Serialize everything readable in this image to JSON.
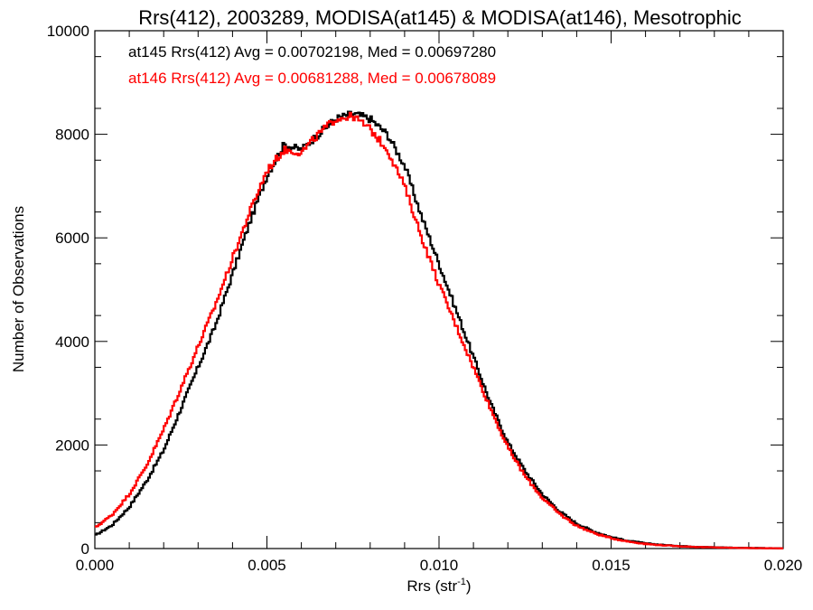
{
  "chart_data": {
    "type": "histogram-step",
    "title": "Rrs(412), 2003289, MODISA(at145) & MODISA(at146), Mesotrophic",
    "xlabel": "Rrs (str",
    "xlabel_sup": "-1",
    "xlabel_close": ")",
    "ylabel": "Number of Observations",
    "xlim": [
      0.0,
      0.02
    ],
    "ylim": [
      0,
      10000
    ],
    "x_ticks": [
      0.0,
      0.005,
      0.01,
      0.015,
      0.02
    ],
    "x_tick_labels": [
      "0.000",
      "0.005",
      "0.010",
      "0.015",
      "0.020"
    ],
    "y_ticks": [
      0,
      2000,
      4000,
      6000,
      8000,
      10000
    ],
    "y_tick_labels": [
      "0",
      "2000",
      "4000",
      "6000",
      "8000",
      "10000"
    ],
    "grid": false,
    "legend_position": "top-left",
    "series": [
      {
        "name": "at145",
        "color": "#000000",
        "legend": "at145 Rrs(412) Avg = 0.00702198, Med = 0.00697280",
        "x": [
          0.0,
          0.0005,
          0.001,
          0.0015,
          0.002,
          0.0025,
          0.003,
          0.0035,
          0.004,
          0.0045,
          0.005,
          0.0055,
          0.006,
          0.0065,
          0.007,
          0.0075,
          0.008,
          0.0085,
          0.009,
          0.0095,
          0.01,
          0.0105,
          0.011,
          0.0115,
          0.012,
          0.0125,
          0.013,
          0.0135,
          0.014,
          0.0145,
          0.015,
          0.0155,
          0.016,
          0.0165,
          0.017,
          0.0175,
          0.018,
          0.0185,
          0.019,
          0.0195,
          0.02
        ],
        "y": [
          250,
          450,
          800,
          1300,
          1900,
          2700,
          3500,
          4300,
          5300,
          6300,
          7200,
          7800,
          7700,
          8000,
          8300,
          8400,
          8300,
          8000,
          7400,
          6400,
          5500,
          4600,
          3700,
          2800,
          2050,
          1500,
          1050,
          720,
          480,
          330,
          220,
          150,
          100,
          70,
          50,
          35,
          25,
          18,
          12,
          8,
          5
        ]
      },
      {
        "name": "at146",
        "color": "#ff0000",
        "legend": "at146 Rrs(412) Avg = 0.00681288, Med = 0.00678089",
        "x": [
          0.0,
          0.0005,
          0.001,
          0.0015,
          0.002,
          0.0025,
          0.003,
          0.0035,
          0.004,
          0.0045,
          0.005,
          0.0055,
          0.006,
          0.0065,
          0.007,
          0.0075,
          0.008,
          0.0085,
          0.009,
          0.0095,
          0.01,
          0.0105,
          0.011,
          0.0115,
          0.012,
          0.0125,
          0.013,
          0.0135,
          0.014,
          0.0145,
          0.015,
          0.0155,
          0.016,
          0.0165,
          0.017,
          0.0175,
          0.018,
          0.0185,
          0.019,
          0.0195,
          0.02
        ],
        "y": [
          400,
          650,
          1050,
          1600,
          2300,
          3100,
          3900,
          4700,
          5600,
          6500,
          7300,
          7700,
          7650,
          8000,
          8300,
          8350,
          8100,
          7700,
          7000,
          6000,
          5100,
          4300,
          3500,
          2700,
          1950,
          1400,
          980,
          670,
          440,
          300,
          200,
          135,
          90,
          62,
          44,
          30,
          22,
          15,
          10,
          6,
          4
        ]
      }
    ]
  }
}
